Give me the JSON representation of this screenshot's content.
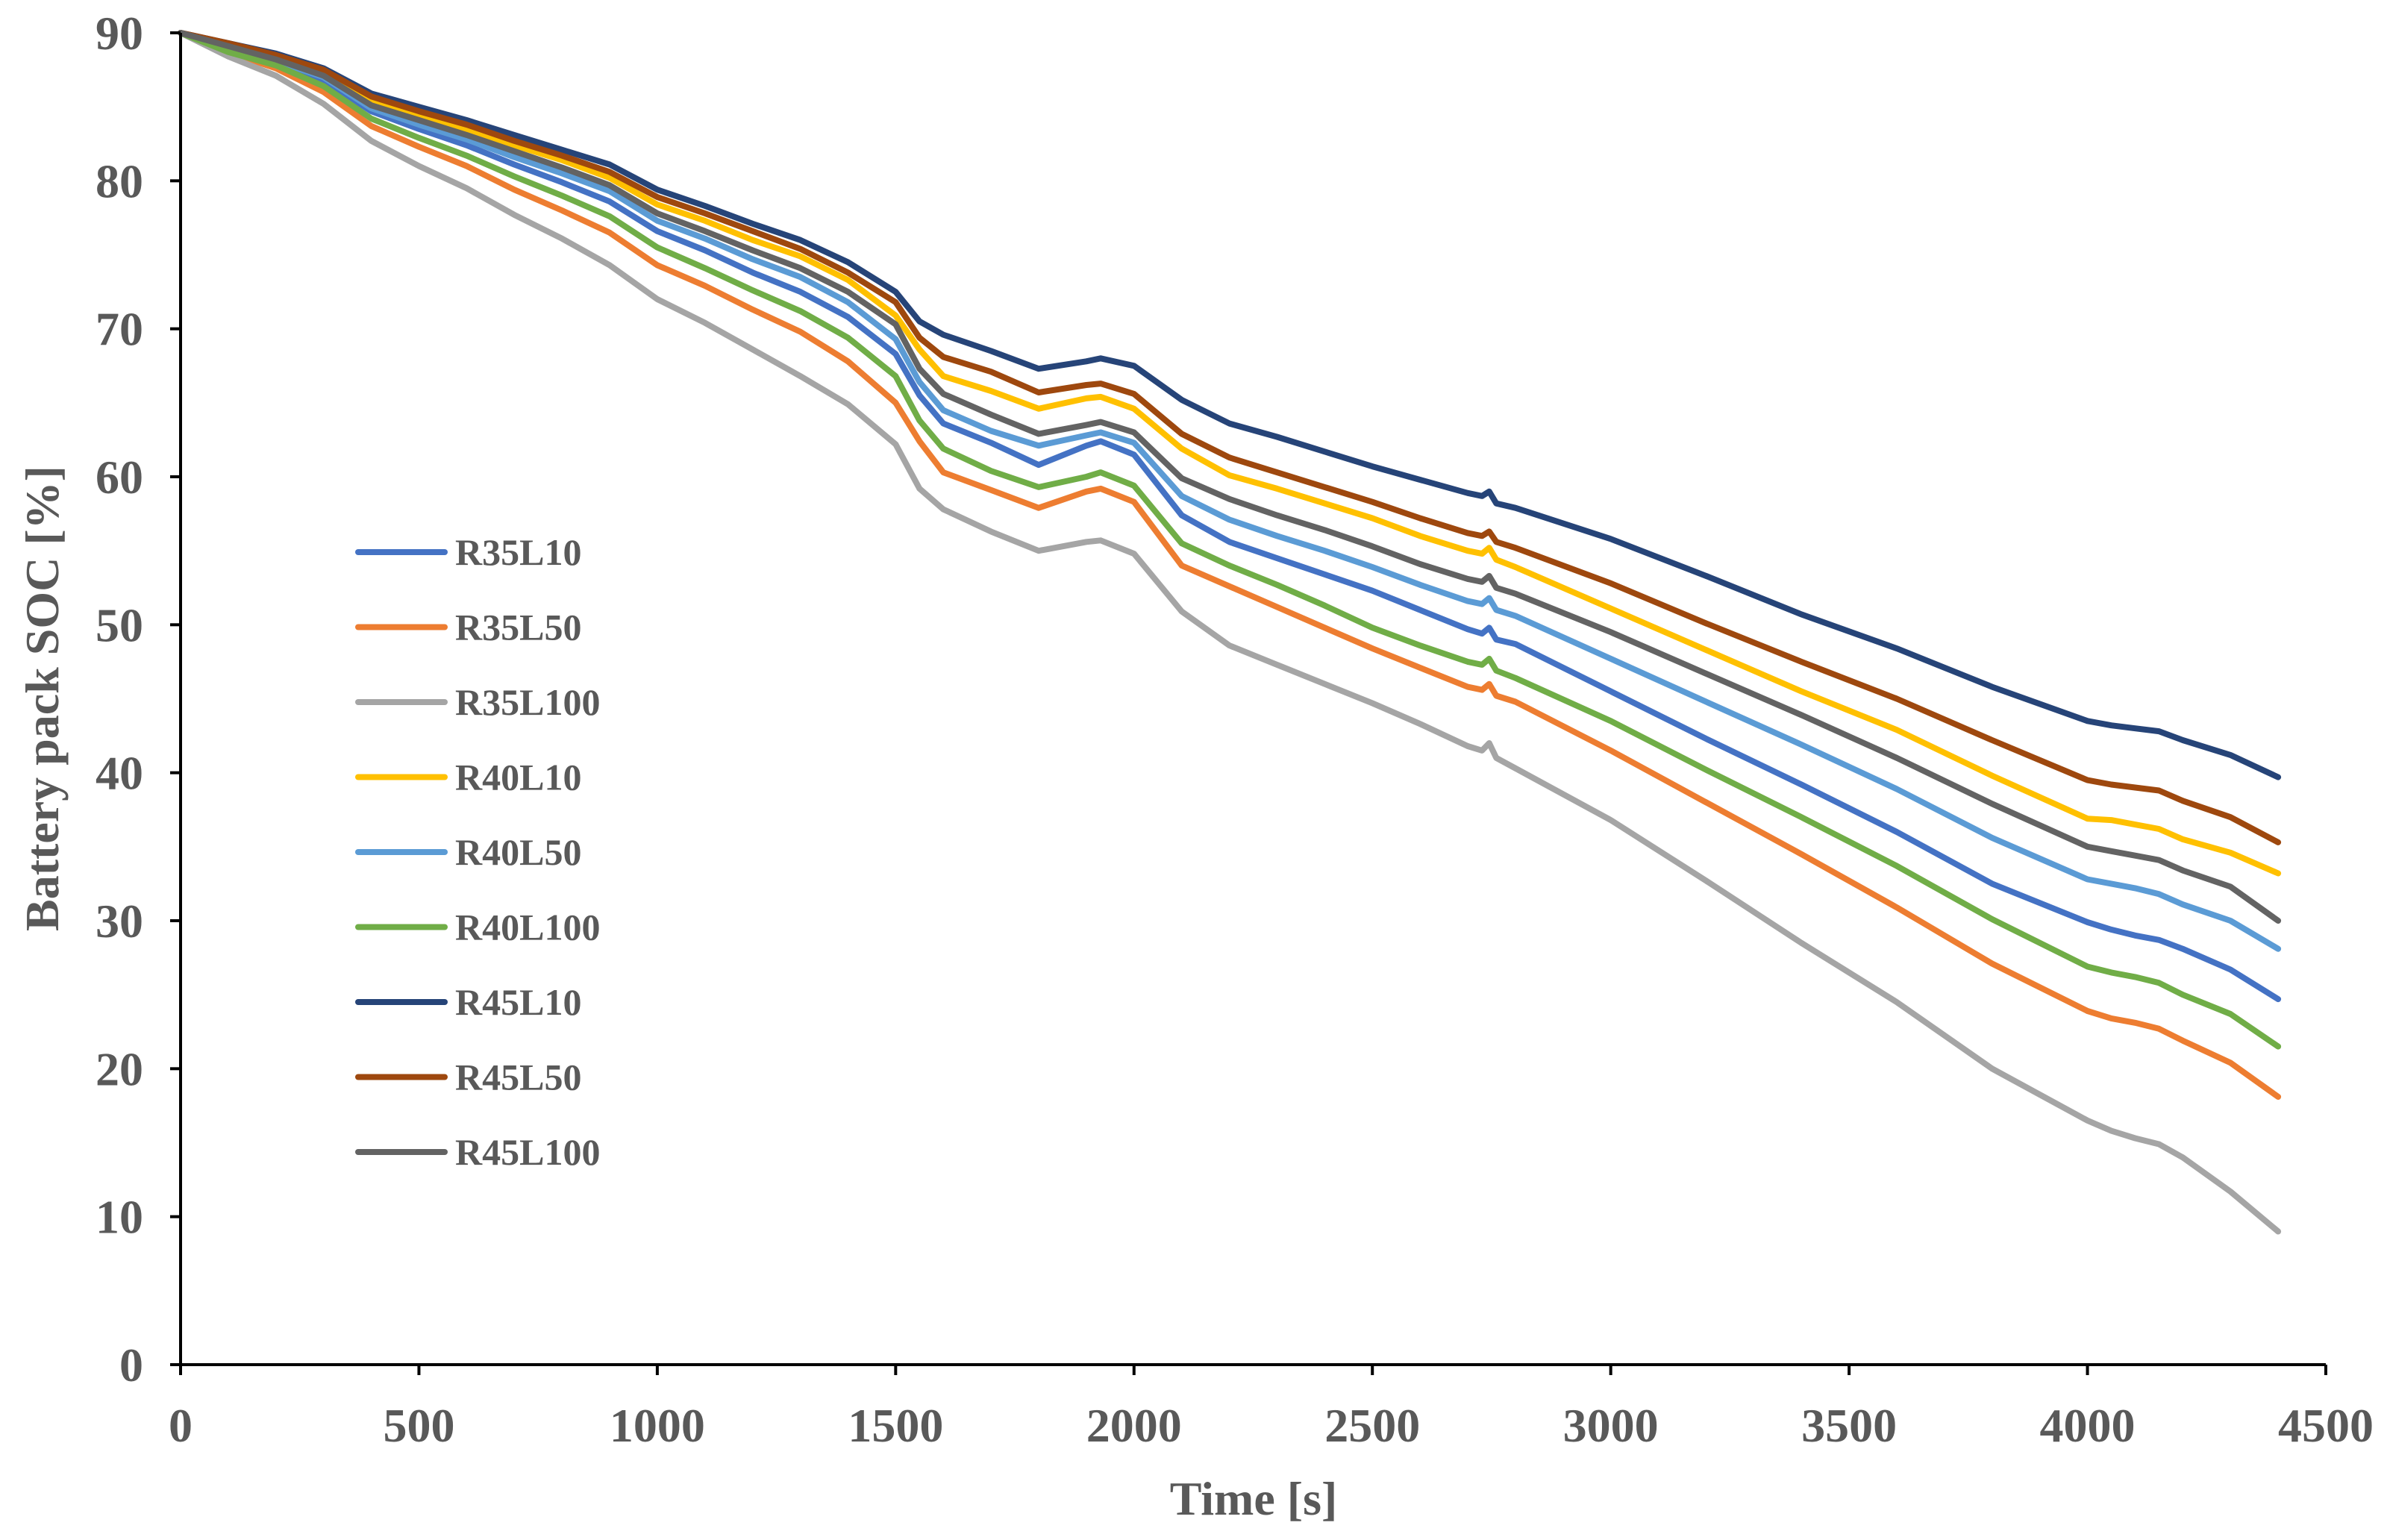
{
  "chart_data": {
    "type": "line",
    "title": "",
    "xlabel": "Time [s]",
    "ylabel": "Battery pack SOC [%]",
    "xlim": [
      0,
      4500
    ],
    "ylim": [
      0,
      90
    ],
    "xticks": [
      0,
      500,
      1000,
      1500,
      2000,
      2500,
      3000,
      3500,
      4000,
      4500
    ],
    "yticks": [
      0,
      10,
      20,
      30,
      40,
      50,
      60,
      70,
      80,
      90
    ],
    "xtick_labels": [
      "0",
      "500",
      "1000",
      "1500",
      "2000",
      "2500",
      "3000",
      "3500",
      "4000",
      "4500"
    ],
    "ytick_labels": [
      "0",
      "10",
      "20",
      "30",
      "40",
      "50",
      "60",
      "70",
      "80",
      "90"
    ],
    "grid": false,
    "legend": "left-center",
    "x": [
      0,
      100,
      200,
      300,
      400,
      500,
      600,
      700,
      800,
      900,
      1000,
      1100,
      1200,
      1300,
      1400,
      1500,
      1550,
      1600,
      1700,
      1800,
      1900,
      1930,
      2000,
      2100,
      2200,
      2300,
      2400,
      2500,
      2600,
      2700,
      2730,
      2745,
      2760,
      2800,
      3000,
      3200,
      3400,
      3600,
      3800,
      4000,
      4050,
      4100,
      4150,
      4200,
      4300,
      4400
    ],
    "series": [
      {
        "name": "R35L10",
        "color": "#4472C4",
        "values": [
          90,
          88.9,
          88.0,
          86.8,
          84.7,
          83.5,
          82.4,
          81.1,
          79.9,
          78.6,
          76.6,
          75.3,
          73.8,
          72.5,
          70.8,
          68.3,
          65.5,
          63.6,
          62.3,
          60.8,
          62.1,
          62.4,
          61.5,
          57.4,
          55.6,
          54.5,
          53.4,
          52.3,
          51.0,
          49.7,
          49.4,
          49.8,
          49.0,
          48.7,
          45.5,
          42.3,
          39.2,
          36.0,
          32.5,
          29.9,
          29.4,
          29.0,
          28.7,
          28.1,
          26.7,
          24.7
        ]
      },
      {
        "name": "R35L50",
        "color": "#ED7D31",
        "values": [
          90,
          88.7,
          87.6,
          86.0,
          83.7,
          82.3,
          81.0,
          79.4,
          78.0,
          76.5,
          74.3,
          72.9,
          71.3,
          69.8,
          67.8,
          65.0,
          62.4,
          60.3,
          59.1,
          57.9,
          59.0,
          59.2,
          58.3,
          54.0,
          52.6,
          51.2,
          49.8,
          48.4,
          47.1,
          45.8,
          45.6,
          46.0,
          45.2,
          44.8,
          41.5,
          38.0,
          34.5,
          30.9,
          27.1,
          23.9,
          23.4,
          23.1,
          22.7,
          21.9,
          20.4,
          18.1
        ]
      },
      {
        "name": "R35L100",
        "color": "#A5A5A5",
        "values": [
          90,
          88.4,
          87.1,
          85.2,
          82.7,
          81.0,
          79.5,
          77.7,
          76.1,
          74.3,
          72.0,
          70.4,
          68.6,
          66.8,
          64.9,
          62.2,
          59.2,
          57.8,
          56.3,
          55.0,
          55.6,
          55.7,
          54.8,
          50.9,
          48.6,
          47.3,
          46.0,
          44.7,
          43.3,
          41.8,
          41.5,
          42.0,
          41.0,
          40.3,
          36.8,
          32.7,
          28.5,
          24.5,
          20.0,
          16.5,
          15.8,
          15.3,
          14.9,
          14.0,
          11.7,
          9.0
        ]
      },
      {
        "name": "R40L10",
        "color": "#FFC000",
        "values": [
          90,
          89.2,
          88.3,
          87.3,
          85.4,
          84.4,
          83.5,
          82.4,
          81.4,
          80.2,
          78.4,
          77.3,
          76.0,
          74.9,
          73.3,
          70.9,
          68.6,
          66.8,
          65.8,
          64.6,
          65.3,
          65.4,
          64.6,
          61.9,
          60.1,
          59.2,
          58.2,
          57.2,
          56.0,
          55.0,
          54.8,
          55.2,
          54.4,
          53.9,
          51.1,
          48.3,
          45.5,
          42.9,
          39.8,
          36.9,
          36.8,
          36.5,
          36.2,
          35.5,
          34.6,
          33.2
        ]
      },
      {
        "name": "R40L50",
        "color": "#5B9BD5",
        "values": [
          90,
          89.0,
          88.1,
          87.0,
          84.9,
          83.8,
          82.8,
          81.6,
          80.5,
          79.3,
          77.3,
          76.1,
          74.7,
          73.5,
          71.8,
          69.3,
          66.4,
          64.5,
          63.1,
          62.1,
          62.8,
          63.0,
          62.3,
          58.7,
          57.1,
          56.0,
          55.0,
          53.9,
          52.7,
          51.6,
          51.4,
          51.8,
          51.0,
          50.6,
          47.7,
          44.8,
          41.9,
          38.9,
          35.6,
          32.8,
          32.5,
          32.2,
          31.8,
          31.1,
          30.0,
          28.1
        ]
      },
      {
        "name": "R40L100",
        "color": "#70AD47",
        "values": [
          90,
          88.7,
          87.8,
          86.4,
          84.2,
          82.9,
          81.7,
          80.3,
          79.0,
          77.6,
          75.5,
          74.1,
          72.6,
          71.2,
          69.4,
          66.8,
          63.8,
          61.9,
          60.4,
          59.3,
          60.0,
          60.3,
          59.4,
          55.5,
          54.0,
          52.7,
          51.3,
          49.8,
          48.6,
          47.5,
          47.3,
          47.7,
          46.9,
          46.4,
          43.5,
          40.2,
          37.0,
          33.7,
          30.1,
          26.9,
          26.5,
          26.2,
          25.8,
          25.0,
          23.7,
          21.5
        ]
      },
      {
        "name": "R45L10",
        "color": "#264478",
        "values": [
          90,
          89.3,
          88.6,
          87.6,
          85.9,
          85.0,
          84.1,
          83.1,
          82.1,
          81.1,
          79.4,
          78.3,
          77.1,
          76.0,
          74.5,
          72.5,
          70.5,
          69.6,
          68.5,
          67.3,
          67.8,
          68.0,
          67.5,
          65.2,
          63.6,
          62.7,
          61.7,
          60.7,
          59.8,
          58.9,
          58.7,
          59.0,
          58.2,
          57.9,
          55.8,
          53.3,
          50.7,
          48.4,
          45.8,
          43.5,
          43.2,
          43.0,
          42.8,
          42.2,
          41.2,
          39.7
        ]
      },
      {
        "name": "R45L50",
        "color": "#9E480E",
        "values": [
          90,
          89.3,
          88.5,
          87.5,
          85.7,
          84.7,
          83.8,
          82.7,
          81.7,
          80.6,
          78.9,
          77.8,
          76.6,
          75.4,
          73.8,
          71.8,
          69.4,
          68.1,
          67.1,
          65.7,
          66.2,
          66.3,
          65.6,
          62.9,
          61.3,
          60.3,
          59.3,
          58.3,
          57.2,
          56.2,
          56.0,
          56.3,
          55.6,
          55.2,
          52.8,
          50.1,
          47.5,
          45.0,
          42.2,
          39.5,
          39.2,
          39.0,
          38.8,
          38.1,
          37.0,
          35.3
        ]
      },
      {
        "name": "R45L100",
        "color": "#636363",
        "values": [
          90,
          89.1,
          88.2,
          87.1,
          85.1,
          84.1,
          83.1,
          82.0,
          80.9,
          79.7,
          77.8,
          76.6,
          75.3,
          74.1,
          72.5,
          70.3,
          67.3,
          65.6,
          64.2,
          62.9,
          63.5,
          63.7,
          63.0,
          59.9,
          58.5,
          57.4,
          56.4,
          55.3,
          54.1,
          53.1,
          52.9,
          53.3,
          52.5,
          52.1,
          49.5,
          46.7,
          43.9,
          41.0,
          37.9,
          35.0,
          34.7,
          34.4,
          34.1,
          33.4,
          32.3,
          30.0
        ]
      }
    ]
  }
}
